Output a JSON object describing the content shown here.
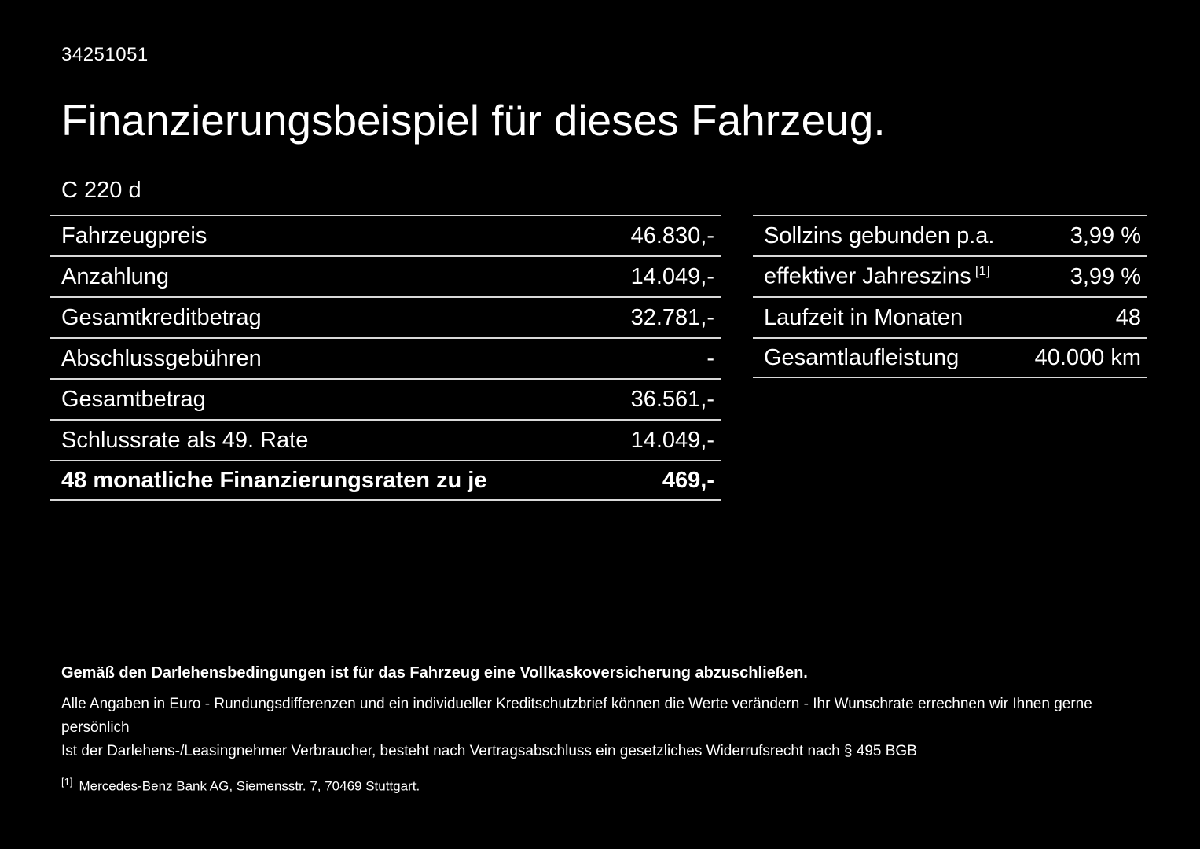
{
  "colors": {
    "background": "#000000",
    "text": "#ffffff",
    "divider": "#d9d9d9"
  },
  "header": {
    "reference_number": "34251051",
    "title": "Finanzierungsbeispiel für dieses Fahrzeug.",
    "model": "C 220 d"
  },
  "left_table": {
    "rows": [
      {
        "label": "Fahrzeugpreis",
        "value": "46.830,-"
      },
      {
        "label": "Anzahlung",
        "value": "14.049,-"
      },
      {
        "label": "Gesamtkreditbetrag",
        "value": "32.781,-"
      },
      {
        "label": "Abschlussgebühren",
        "value": "-"
      },
      {
        "label": "Gesamtbetrag",
        "value": "36.561,-"
      },
      {
        "label": "Schlussrate als 49. Rate",
        "value": "14.049,-"
      },
      {
        "label": "48 monatliche Finanzierungsraten zu je",
        "value": "469,-"
      }
    ]
  },
  "right_table": {
    "rows": [
      {
        "label": "Sollzins gebunden p.a.",
        "value": "3,99 %"
      },
      {
        "label": "effektiver Jahreszins",
        "footnote_marker": "[1]",
        "value": "3,99 %"
      },
      {
        "label": "Laufzeit in Monaten",
        "value": "48"
      },
      {
        "label": "Gesamtlaufleistung",
        "value": "40.000 km"
      }
    ]
  },
  "footer": {
    "bold_line": "Gemäß den Darlehensbedingungen ist für das Fahrzeug eine Vollkaskoversicherung abzuschließen.",
    "line2": "Alle Angaben in Euro - Rundungsdifferenzen und ein individueller Kreditschutzbrief können die Werte verändern - Ihr Wunschrate errechnen wir Ihnen gerne persönlich",
    "line3": "Ist der Darlehens-/Leasingnehmer Verbraucher, besteht nach Vertragsabschluss ein gesetzliches Widerrufsrecht nach § 495 BGB",
    "footnote_marker": "[1]",
    "footnote_text": "Mercedes-Benz Bank AG, Siemensstr. 7, 70469 Stuttgart."
  }
}
